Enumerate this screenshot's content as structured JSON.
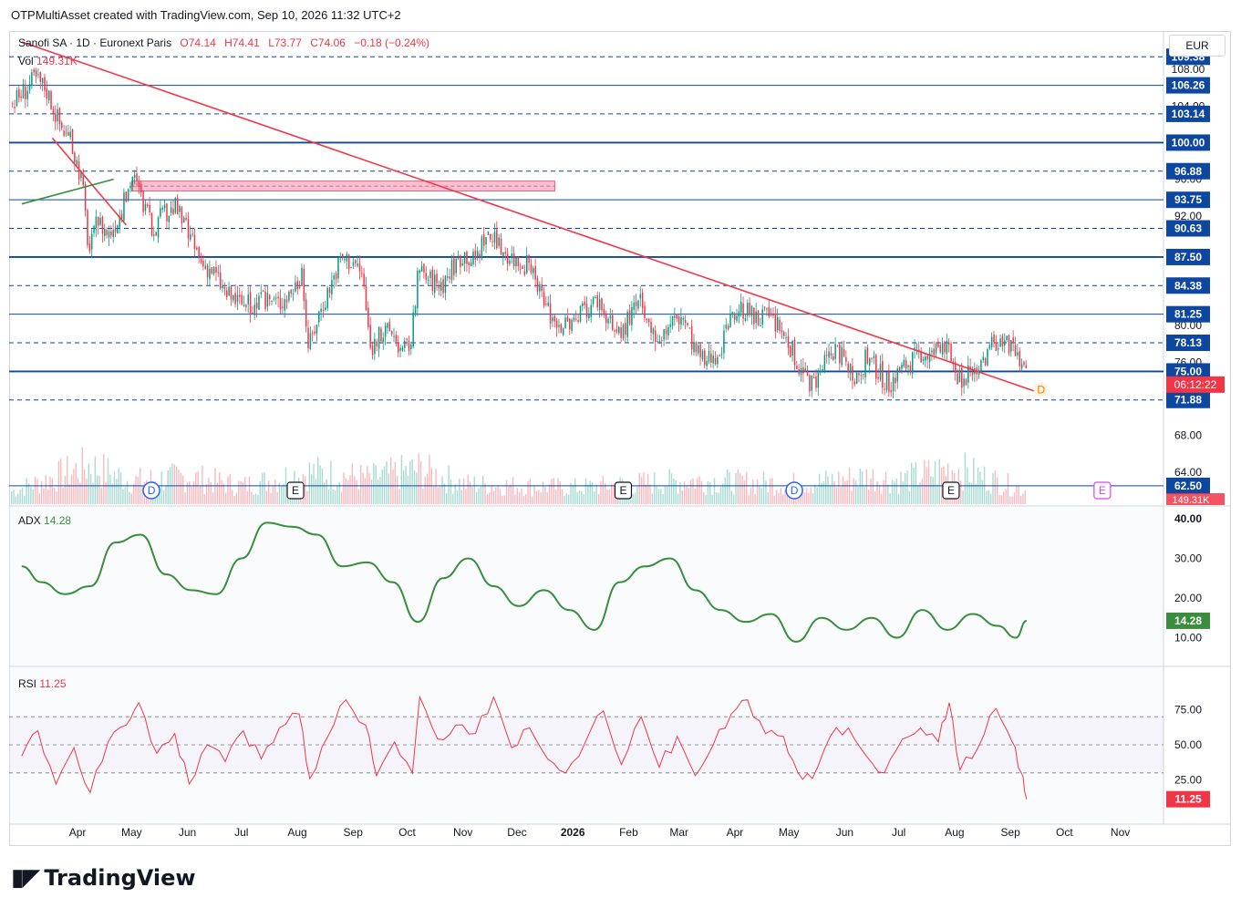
{
  "header": {
    "caption": "OTPMultiAsset created with TradingView.com, Sep 10, 2026 11:32 UTC+2",
    "currency_button": "EUR"
  },
  "legend": {
    "symbol": "Sanofi SA · 1D · Euronext Paris",
    "open": "O74.14",
    "high": "H74.41",
    "low": "L73.77",
    "close": "C74.06",
    "change": "−0.18 (−0.24%)",
    "vol_label": "Vol",
    "vol_value": "149.31K",
    "adx_label": "ADX",
    "adx_value": "14.28",
    "rsi_label": "RSI",
    "rsi_value": "11.25"
  },
  "colors": {
    "up": "#089981",
    "down": "#f23645",
    "level_line": "#0d47a1",
    "trend_red": "#f23645",
    "trend_green": "#388e3c",
    "adx_line": "#388e3c",
    "rsi_line": "#f23645",
    "zone_fill": "#f8bbd0"
  },
  "chart_data": [
    {
      "type": "candlestick",
      "title": "Sanofi SA · 1D · Euronext Paris",
      "y_scale": "linear",
      "ylim": [
        60.5,
        111
      ],
      "x_ticks": [
        "Apr",
        "May",
        "Jun",
        "Jul",
        "Aug",
        "Sep",
        "Oct",
        "Nov",
        "Dec",
        "2026",
        "Feb",
        "Mar",
        "Apr",
        "May",
        "Jun",
        "Jul",
        "Aug",
        "Sep",
        "Oct",
        "Nov"
      ],
      "y_ticks": [
        "108.00",
        "104.00",
        "96.00",
        "92.00",
        "80.00",
        "76.00",
        "72.00",
        "68.00",
        "64.00"
      ],
      "price_levels": [
        {
          "label": "109.38",
          "value": 109.38,
          "style": "dashed"
        },
        {
          "label": "106.26",
          "value": 106.26,
          "style": "solid"
        },
        {
          "label": "103.14",
          "value": 103.14,
          "style": "dashed"
        },
        {
          "label": "100.00",
          "value": 100.0,
          "style": "solid-bold"
        },
        {
          "label": "96.88",
          "value": 96.88,
          "style": "dashed"
        },
        {
          "label": "93.75",
          "value": 93.75,
          "style": "solid"
        },
        {
          "label": "90.63",
          "value": 90.63,
          "style": "dashed"
        },
        {
          "label": "87.50",
          "value": 87.5,
          "style": "solid-bold"
        },
        {
          "label": "84.38",
          "value": 84.38,
          "style": "dashed"
        },
        {
          "label": "81.25",
          "value": 81.25,
          "style": "solid"
        },
        {
          "label": "78.13",
          "value": 78.13,
          "style": "dashed"
        },
        {
          "label": "75.00",
          "value": 75.0,
          "style": "solid-bold"
        },
        {
          "label": "71.88",
          "value": 71.88,
          "style": "dashed"
        },
        {
          "label": "62.50",
          "value": 62.5,
          "style": "solid"
        }
      ],
      "top_line_value": 112.5,
      "current_price": {
        "value": 74.06,
        "countdown": "06:12:22"
      },
      "volume_badge": "149.31K",
      "resistance_zone": {
        "from": "2025-05-01",
        "to": "2025-12-22",
        "low": 94.7,
        "high": 95.8
      },
      "trendlines": [
        {
          "color": "red",
          "from": [
            "2025-03-01",
            111.0
          ],
          "to": [
            "2026-09-18",
            72.6
          ]
        },
        {
          "color": "red",
          "from": [
            "2025-03-18",
            100.5
          ],
          "to": [
            "2025-04-28",
            91.0
          ]
        },
        {
          "color": "green",
          "from": [
            "2025-03-01",
            93.3
          ],
          "to": [
            "2025-04-21",
            96.0
          ]
        }
      ],
      "close_path": [
        [
          "2025-03-01",
          105.5
        ],
        [
          "2025-03-08",
          107.0
        ],
        [
          "2025-03-14",
          106.0
        ],
        [
          "2025-03-22",
          102.0
        ],
        [
          "2025-03-28",
          100.0
        ],
        [
          "2025-04-03",
          96.0
        ],
        [
          "2025-04-07",
          88.0
        ],
        [
          "2025-04-12",
          91.5
        ],
        [
          "2025-04-18",
          90.0
        ],
        [
          "2025-04-25",
          92.5
        ],
        [
          "2025-05-01",
          96.5
        ],
        [
          "2025-05-06",
          94.0
        ],
        [
          "2025-05-12",
          90.5
        ],
        [
          "2025-05-18",
          92.0
        ],
        [
          "2025-05-25",
          93.0
        ],
        [
          "2025-06-01",
          90.0
        ],
        [
          "2025-06-08",
          87.0
        ],
        [
          "2025-06-15",
          86.0
        ],
        [
          "2025-06-22",
          83.5
        ],
        [
          "2025-06-30",
          82.5
        ],
        [
          "2025-07-08",
          82.0
        ],
        [
          "2025-07-15",
          83.0
        ],
        [
          "2025-07-22",
          82.5
        ],
        [
          "2025-07-29",
          84.0
        ],
        [
          "2025-08-03",
          85.5
        ],
        [
          "2025-08-07",
          77.5
        ],
        [
          "2025-08-12",
          81.0
        ],
        [
          "2025-08-18",
          84.0
        ],
        [
          "2025-08-25",
          87.5
        ],
        [
          "2025-09-01",
          87.0
        ],
        [
          "2025-09-06",
          85.5
        ],
        [
          "2025-09-10",
          77.5
        ],
        [
          "2025-09-16",
          79.0
        ],
        [
          "2025-09-22",
          79.5
        ],
        [
          "2025-09-28",
          77.0
        ],
        [
          "2025-10-03",
          78.5
        ],
        [
          "2025-10-07",
          86.0
        ],
        [
          "2025-10-13",
          85.0
        ],
        [
          "2025-10-20",
          84.5
        ],
        [
          "2025-10-26",
          86.5
        ],
        [
          "2025-11-01",
          88.0
        ],
        [
          "2025-11-07",
          87.0
        ],
        [
          "2025-11-13",
          90.0
        ],
        [
          "2025-11-19",
          89.0
        ],
        [
          "2025-11-25",
          88.0
        ],
        [
          "2025-12-01",
          87.0
        ],
        [
          "2025-12-07",
          86.5
        ],
        [
          "2025-12-13",
          83.5
        ],
        [
          "2025-12-20",
          81.0
        ],
        [
          "2025-12-27",
          80.0
        ],
        [
          "2026-01-03",
          80.5
        ],
        [
          "2026-01-09",
          82.0
        ],
        [
          "2026-01-15",
          83.0
        ],
        [
          "2026-01-21",
          80.0
        ],
        [
          "2026-01-27",
          79.0
        ],
        [
          "2026-02-01",
          81.0
        ],
        [
          "2026-02-07",
          82.5
        ],
        [
          "2026-02-13",
          78.5
        ],
        [
          "2026-02-19",
          79.0
        ],
        [
          "2026-02-25",
          80.5
        ],
        [
          "2026-03-03",
          81.0
        ],
        [
          "2026-03-09",
          77.5
        ],
        [
          "2026-03-15",
          76.0
        ],
        [
          "2026-03-21",
          77.0
        ],
        [
          "2026-03-27",
          79.0
        ],
        [
          "2026-04-02",
          82.0
        ],
        [
          "2026-04-08",
          81.5
        ],
        [
          "2026-04-14",
          80.5
        ],
        [
          "2026-04-20",
          81.0
        ],
        [
          "2026-04-26",
          79.5
        ],
        [
          "2026-05-02",
          77.5
        ],
        [
          "2026-05-08",
          74.5
        ],
        [
          "2026-05-14",
          73.5
        ],
        [
          "2026-05-20",
          75.5
        ],
        [
          "2026-05-26",
          77.5
        ],
        [
          "2026-06-01",
          76.0
        ],
        [
          "2026-06-07",
          74.5
        ],
        [
          "2026-06-13",
          76.5
        ],
        [
          "2026-06-19",
          75.0
        ],
        [
          "2026-06-25",
          73.5
        ],
        [
          "2026-07-01",
          75.0
        ],
        [
          "2026-07-07",
          76.0
        ],
        [
          "2026-07-13",
          77.0
        ],
        [
          "2026-07-19",
          76.5
        ],
        [
          "2026-07-25",
          78.5
        ],
        [
          "2026-07-31",
          75.5
        ],
        [
          "2026-08-05",
          74.0
        ],
        [
          "2026-08-11",
          75.0
        ],
        [
          "2026-08-17",
          76.5
        ],
        [
          "2026-08-23",
          78.5
        ],
        [
          "2026-08-29",
          78.0
        ],
        [
          "2026-09-04",
          76.5
        ],
        [
          "2026-09-10",
          74.06
        ]
      ],
      "volume_path": [
        [
          "2025-03-01",
          18
        ],
        [
          "2025-04-07",
          42
        ],
        [
          "2025-05-01",
          25
        ],
        [
          "2025-06-01",
          30
        ],
        [
          "2025-07-01",
          20
        ],
        [
          "2025-08-07",
          35
        ],
        [
          "2025-09-10",
          28
        ],
        [
          "2025-10-07",
          38
        ],
        [
          "2025-11-01",
          22
        ],
        [
          "2025-12-01",
          20
        ],
        [
          "2026-01-03",
          18
        ],
        [
          "2026-02-01",
          22
        ],
        [
          "2026-03-09",
          26
        ],
        [
          "2026-04-02",
          24
        ],
        [
          "2026-05-08",
          22
        ],
        [
          "2026-06-13",
          30
        ],
        [
          "2026-07-01",
          26
        ],
        [
          "2026-07-31",
          40
        ],
        [
          "2026-08-29",
          22
        ],
        [
          "2026-09-10",
          15
        ]
      ],
      "event_markers": [
        {
          "label": "D",
          "date": "2025-05-12",
          "kind": "dividend"
        },
        {
          "label": "E",
          "date": "2025-07-31",
          "kind": "earnings"
        },
        {
          "label": "E",
          "date": "2026-01-29",
          "kind": "earnings"
        },
        {
          "label": "D",
          "date": "2026-05-04",
          "kind": "dividend"
        },
        {
          "label": "E",
          "date": "2026-07-30",
          "kind": "earnings"
        },
        {
          "label": "E",
          "date": "2026-10-22",
          "kind": "earnings-upcoming"
        },
        {
          "label": "D",
          "date": "2026-09-18",
          "kind": "dividend-upcoming"
        }
      ]
    },
    {
      "type": "line",
      "title": "ADX",
      "ylim": [
        3,
        43
      ],
      "y_ticks": [
        "40.00",
        "30.00",
        "20.00",
        "10.00"
      ],
      "current": "14.28",
      "series": [
        {
          "name": "ADX",
          "points": [
            [
              "2025-03-01",
              28
            ],
            [
              "2025-03-12",
              24
            ],
            [
              "2025-03-25",
              21
            ],
            [
              "2025-04-08",
              23
            ],
            [
              "2025-04-22",
              34
            ],
            [
              "2025-05-06",
              36
            ],
            [
              "2025-05-20",
              26
            ],
            [
              "2025-06-03",
              22
            ],
            [
              "2025-06-17",
              21
            ],
            [
              "2025-07-01",
              30
            ],
            [
              "2025-07-15",
              39
            ],
            [
              "2025-07-29",
              38
            ],
            [
              "2025-08-12",
              36
            ],
            [
              "2025-08-26",
              28
            ],
            [
              "2025-09-09",
              29
            ],
            [
              "2025-09-23",
              24
            ],
            [
              "2025-10-07",
              14
            ],
            [
              "2025-10-21",
              25
            ],
            [
              "2025-11-04",
              30
            ],
            [
              "2025-11-18",
              23
            ],
            [
              "2025-12-02",
              18
            ],
            [
              "2025-12-16",
              22
            ],
            [
              "2025-12-30",
              17
            ],
            [
              "2026-01-13",
              12
            ],
            [
              "2026-01-27",
              24
            ],
            [
              "2026-02-10",
              28
            ],
            [
              "2026-02-24",
              30
            ],
            [
              "2026-03-10",
              22
            ],
            [
              "2026-03-24",
              17
            ],
            [
              "2026-04-07",
              14
            ],
            [
              "2026-04-21",
              16
            ],
            [
              "2026-05-05",
              9
            ],
            [
              "2026-05-19",
              15
            ],
            [
              "2026-06-02",
              12
            ],
            [
              "2026-06-16",
              15
            ],
            [
              "2026-06-30",
              10
            ],
            [
              "2026-07-14",
              17
            ],
            [
              "2026-07-28",
              12
            ],
            [
              "2026-08-11",
              16
            ],
            [
              "2026-08-25",
              13
            ],
            [
              "2026-09-04",
              10
            ],
            [
              "2026-09-10",
              14.28
            ]
          ]
        }
      ]
    },
    {
      "type": "line",
      "title": "RSI",
      "ylim": [
        0,
        100
      ],
      "y_ticks": [
        "75.00",
        "50.00",
        "25.00"
      ],
      "bands": [
        70,
        50,
        30
      ],
      "current": "11.25",
      "series": [
        {
          "name": "RSI",
          "points": [
            [
              "2025-03-01",
              42
            ],
            [
              "2025-03-10",
              60
            ],
            [
              "2025-03-20",
              22
            ],
            [
              "2025-03-30",
              48
            ],
            [
              "2025-04-08",
              16
            ],
            [
              "2025-04-18",
              52
            ],
            [
              "2025-04-28",
              64
            ],
            [
              "2025-05-05",
              80
            ],
            [
              "2025-05-15",
              44
            ],
            [
              "2025-05-25",
              58
            ],
            [
              "2025-06-02",
              22
            ],
            [
              "2025-06-12",
              50
            ],
            [
              "2025-06-22",
              38
            ],
            [
              "2025-07-02",
              60
            ],
            [
              "2025-07-12",
              40
            ],
            [
              "2025-07-22",
              62
            ],
            [
              "2025-08-02",
              72
            ],
            [
              "2025-08-08",
              26
            ],
            [
              "2025-08-18",
              56
            ],
            [
              "2025-08-28",
              82
            ],
            [
              "2025-09-08",
              64
            ],
            [
              "2025-09-14",
              28
            ],
            [
              "2025-09-24",
              52
            ],
            [
              "2025-10-04",
              30
            ],
            [
              "2025-10-08",
              84
            ],
            [
              "2025-10-18",
              54
            ],
            [
              "2025-10-28",
              64
            ],
            [
              "2025-11-08",
              58
            ],
            [
              "2025-11-18",
              84
            ],
            [
              "2025-11-28",
              48
            ],
            [
              "2025-12-08",
              62
            ],
            [
              "2025-12-18",
              40
            ],
            [
              "2025-12-28",
              30
            ],
            [
              "2026-01-08",
              52
            ],
            [
              "2026-01-18",
              74
            ],
            [
              "2026-01-28",
              36
            ],
            [
              "2026-02-08",
              70
            ],
            [
              "2026-02-18",
              34
            ],
            [
              "2026-02-28",
              56
            ],
            [
              "2026-03-10",
              28
            ],
            [
              "2026-03-20",
              50
            ],
            [
              "2026-03-30",
              72
            ],
            [
              "2026-04-08",
              82
            ],
            [
              "2026-04-18",
              58
            ],
            [
              "2026-04-28",
              56
            ],
            [
              "2026-05-06",
              30
            ],
            [
              "2026-05-14",
              26
            ],
            [
              "2026-05-24",
              56
            ],
            [
              "2026-06-03",
              62
            ],
            [
              "2026-06-13",
              42
            ],
            [
              "2026-06-23",
              30
            ],
            [
              "2026-07-03",
              54
            ],
            [
              "2026-07-13",
              62
            ],
            [
              "2026-07-23",
              52
            ],
            [
              "2026-07-29",
              80
            ],
            [
              "2026-08-04",
              32
            ],
            [
              "2026-08-14",
              48
            ],
            [
              "2026-08-24",
              76
            ],
            [
              "2026-09-02",
              52
            ],
            [
              "2026-09-07",
              30
            ],
            [
              "2026-09-10",
              11.25
            ]
          ]
        }
      ]
    }
  ]
}
